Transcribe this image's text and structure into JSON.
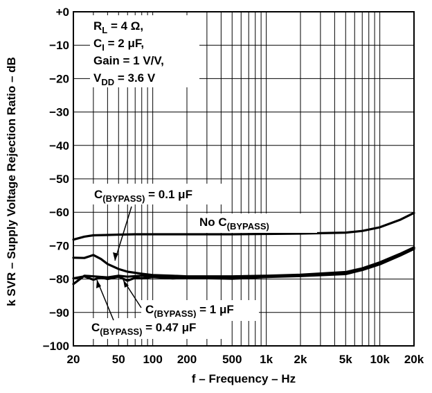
{
  "chart_data": {
    "type": "line",
    "xlabel": "f – Frequency – Hz",
    "ylabel": "k SVR – Supply Voltage Rejection Ratio – dB",
    "x_scale": "log",
    "xlim": [
      20,
      20000
    ],
    "ylim": [
      -100,
      0
    ],
    "grid": true,
    "x_ticks": [
      20,
      50,
      100,
      200,
      500,
      1000,
      2000,
      5000,
      10000,
      20000
    ],
    "x_tick_labels": [
      "20",
      "50",
      "100",
      "200",
      "500",
      "1k",
      "2k",
      "5k",
      "10k",
      "20k"
    ],
    "y_ticks": [
      0,
      -10,
      -20,
      -30,
      -40,
      -50,
      -60,
      -70,
      -80,
      -90,
      -100
    ],
    "y_tick_labels": [
      "+0",
      "−10",
      "−20",
      "−30",
      "−40",
      "−50",
      "−60",
      "−70",
      "−80",
      "−90",
      "−100"
    ],
    "conditions": {
      "rl": {
        "main": "R",
        "sub": "L",
        "rest": " = 4 Ω,"
      },
      "ci": {
        "main": "C",
        "sub": "I",
        "rest": " = 2 μF,"
      },
      "gain": "Gain = 1 V/V,",
      "vdd": {
        "main": "V",
        "sub": "DD",
        "rest": " = 3.6 V"
      }
    },
    "annotations": {
      "c01": {
        "main": "C",
        "sub": "(BYPASS)",
        "rest": " = 0.1 μF"
      },
      "nobyp": {
        "main": "No C",
        "sub": "(BYPASS)",
        "rest": ""
      },
      "c1": {
        "main": "C",
        "sub": "(BYPASS)",
        "rest": " = 1 μF"
      },
      "c047": {
        "main": "C",
        "sub": "(BYPASS)",
        "rest": " = 0.47 μF"
      }
    },
    "series": [
      {
        "key": "no_bypass",
        "x": [
          20,
          25,
          30,
          40,
          50,
          70,
          100,
          200,
          500,
          1000,
          2000,
          5000,
          7000,
          10000,
          15000,
          20000
        ],
        "y": [
          -68.2,
          -67.3,
          -66.9,
          -66.8,
          -66.7,
          -66.6,
          -66.6,
          -66.6,
          -66.6,
          -66.5,
          -66.4,
          -66.1,
          -65.6,
          -64.5,
          -62.3,
          -60.2
        ]
      },
      {
        "key": "bypass_0.1uF",
        "x": [
          20,
          25,
          30,
          35,
          40,
          50,
          60,
          80,
          100,
          150,
          200,
          500,
          1000,
          2000,
          5000,
          7000,
          10000,
          15000,
          20000
        ],
        "y": [
          -73.6,
          -73.7,
          -72.8,
          -74.0,
          -75.5,
          -77.0,
          -77.8,
          -78.4,
          -78.8,
          -79.0,
          -79.2,
          -79.2,
          -79.0,
          -78.7,
          -77.9,
          -76.8,
          -75.0,
          -72.5,
          -70.5
        ]
      },
      {
        "key": "bypass_1uF",
        "x": [
          20,
          25,
          30,
          40,
          50,
          60,
          80,
          100,
          150,
          200,
          500,
          1000,
          2000,
          5000,
          7000,
          10000,
          15000,
          20000
        ],
        "y": [
          -81.5,
          -79.0,
          -79.2,
          -79.5,
          -79.0,
          -79.3,
          -79.0,
          -79.2,
          -79.5,
          -79.4,
          -79.6,
          -79.1,
          -78.9,
          -78.2,
          -77.0,
          -75.2,
          -72.8,
          -70.7
        ]
      },
      {
        "key": "bypass_0.47uF",
        "x": [
          20,
          25,
          30,
          35,
          40,
          50,
          60,
          70,
          80,
          100,
          150,
          200,
          500,
          1000,
          2000,
          5000,
          7000,
          10000,
          15000,
          20000
        ],
        "y": [
          -79.8,
          -79.2,
          -80.2,
          -79.5,
          -80.0,
          -79.3,
          -80.5,
          -79.6,
          -79.8,
          -79.4,
          -79.8,
          -79.6,
          -79.9,
          -79.4,
          -79.1,
          -78.5,
          -77.3,
          -75.6,
          -73.0,
          -71.0
        ]
      }
    ]
  }
}
